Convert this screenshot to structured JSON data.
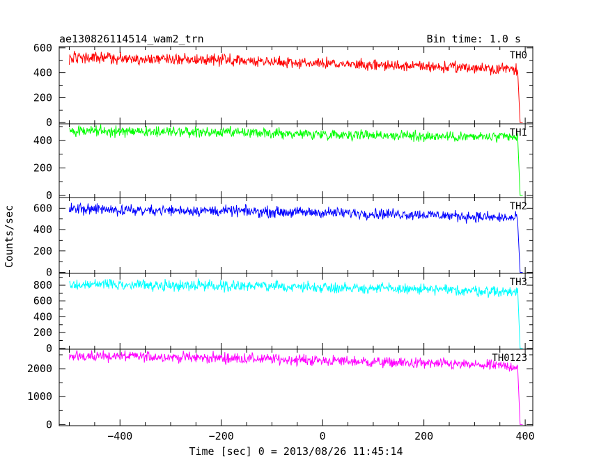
{
  "chart_data": {
    "type": "line",
    "title": "ae130826114514_wam2_trn",
    "subtitle": "Bin time: 1.0 s",
    "xlabel": "Time [sec] 0 = 2013/08/26 11:45:14",
    "ylabel": "Counts/sec",
    "xlim": [
      -520,
      415
    ],
    "x_ticks": [
      -400,
      -200,
      0,
      200,
      400
    ],
    "grid": false,
    "panels": [
      {
        "label": "TH0",
        "color": "#ff0000",
        "ylim": [
          -10,
          610
        ],
        "y_ticks": [
          0,
          200,
          400,
          600
        ],
        "x": [
          -500,
          -400,
          -300,
          -200,
          -100,
          0,
          100,
          200,
          300,
          385,
          390,
          395
        ],
        "y": [
          520,
          515,
          510,
          505,
          490,
          475,
          460,
          450,
          440,
          430,
          0,
          0
        ]
      },
      {
        "label": "TH1",
        "color": "#00ff00",
        "ylim": [
          -15,
          520
        ],
        "y_ticks": [
          0,
          200,
          400
        ],
        "x": [
          -500,
          -400,
          -300,
          -200,
          -100,
          0,
          100,
          200,
          300,
          385,
          390,
          395
        ],
        "y": [
          470,
          465,
          460,
          455,
          450,
          445,
          440,
          430,
          425,
          420,
          0,
          0
        ]
      },
      {
        "label": "TH2",
        "color": "#0000ff",
        "ylim": [
          -10,
          700
        ],
        "y_ticks": [
          0,
          200,
          400,
          600
        ],
        "x": [
          -500,
          -400,
          -300,
          -200,
          -100,
          0,
          100,
          200,
          300,
          385,
          390,
          395
        ],
        "y": [
          590,
          585,
          580,
          575,
          565,
          560,
          550,
          540,
          520,
          505,
          0,
          0
        ]
      },
      {
        "label": "TH3",
        "color": "#00ffff",
        "ylim": [
          -10,
          950
        ],
        "y_ticks": [
          0,
          200,
          400,
          600,
          800
        ],
        "x": [
          -500,
          -400,
          -300,
          -200,
          -100,
          0,
          100,
          200,
          300,
          385,
          390,
          395
        ],
        "y": [
          810,
          805,
          800,
          795,
          785,
          775,
          760,
          745,
          730,
          715,
          0,
          0
        ]
      },
      {
        "label": "TH0123",
        "color": "#ff00ff",
        "ylim": [
          -40,
          2700
        ],
        "y_ticks": [
          0,
          1000,
          2000
        ],
        "x": [
          -500,
          -400,
          -300,
          -200,
          -100,
          0,
          100,
          200,
          300,
          385,
          390,
          395
        ],
        "y": [
          2450,
          2440,
          2420,
          2380,
          2340,
          2290,
          2240,
          2190,
          2130,
          2080,
          0,
          0
        ]
      }
    ]
  }
}
